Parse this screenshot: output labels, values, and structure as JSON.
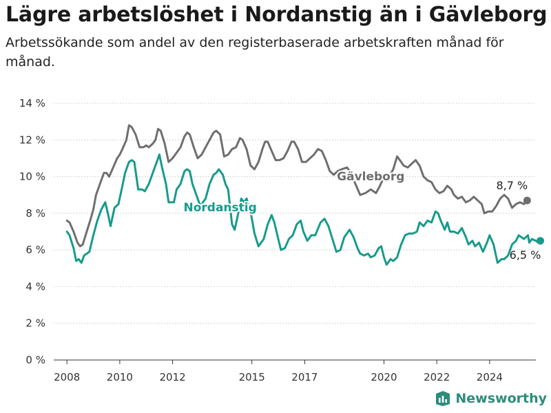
{
  "header": {
    "title": "Lägre arbetslöshet i Nordanstig än i Gävleborg",
    "subtitle": "Arbetssökande som andel av den registerbaserade arbetskraften månad för månad."
  },
  "brand": {
    "name": "Newsworthy"
  },
  "chart_data": {
    "type": "line",
    "title": "Lägre arbetslöshet i Nordanstig än i Gävleborg",
    "subtitle": "Arbetssökande som andel av den registerbaserade arbetskraften månad för månad.",
    "xlabel": "",
    "ylabel": "",
    "xlim": [
      2007.5,
      2025.75
    ],
    "ylim": [
      0,
      14
    ],
    "x_ticks": [
      2008,
      2010,
      2012,
      2015,
      2017,
      2020,
      2022,
      2024
    ],
    "x_tick_labels": [
      "2008",
      "2010",
      "2012",
      "2015",
      "2017",
      "2020",
      "2022",
      "2024"
    ],
    "y_ticks": [
      0,
      2,
      4,
      6,
      8,
      10,
      12,
      14
    ],
    "y_tick_labels": [
      "0 %",
      "2 %",
      "4 %",
      "6 %",
      "8 %",
      "10 %",
      "12 %",
      "14 %"
    ],
    "grid": "horizontal",
    "legend": "direct labels",
    "series": [
      {
        "name": "Gävleborg",
        "color": "#6e6e6e",
        "end_label": "8,7 %",
        "points": [
          [
            2008.0,
            7.6
          ],
          [
            2008.1,
            7.5
          ],
          [
            2008.25,
            7.0
          ],
          [
            2008.4,
            6.4
          ],
          [
            2008.5,
            6.2
          ],
          [
            2008.6,
            6.3
          ],
          [
            2008.75,
            7.0
          ],
          [
            2008.9,
            7.7
          ],
          [
            2009.0,
            8.2
          ],
          [
            2009.1,
            9.0
          ],
          [
            2009.25,
            9.6
          ],
          [
            2009.4,
            10.2
          ],
          [
            2009.5,
            10.2
          ],
          [
            2009.6,
            10.0
          ],
          [
            2009.75,
            10.5
          ],
          [
            2009.9,
            11.0
          ],
          [
            2010.0,
            11.2
          ],
          [
            2010.1,
            11.5
          ],
          [
            2010.25,
            12.0
          ],
          [
            2010.35,
            12.8
          ],
          [
            2010.45,
            12.7
          ],
          [
            2010.6,
            12.3
          ],
          [
            2010.75,
            11.6
          ],
          [
            2010.9,
            11.6
          ],
          [
            2011.0,
            11.7
          ],
          [
            2011.1,
            11.6
          ],
          [
            2011.25,
            11.8
          ],
          [
            2011.35,
            12.0
          ],
          [
            2011.45,
            12.6
          ],
          [
            2011.55,
            12.5
          ],
          [
            2011.7,
            11.8
          ],
          [
            2011.85,
            10.8
          ],
          [
            2012.0,
            11.0
          ],
          [
            2012.15,
            11.3
          ],
          [
            2012.3,
            11.6
          ],
          [
            2012.45,
            12.2
          ],
          [
            2012.55,
            12.4
          ],
          [
            2012.65,
            12.3
          ],
          [
            2012.8,
            11.6
          ],
          [
            2012.95,
            11.0
          ],
          [
            2013.1,
            11.2
          ],
          [
            2013.25,
            11.6
          ],
          [
            2013.4,
            12.0
          ],
          [
            2013.55,
            12.4
          ],
          [
            2013.65,
            12.5
          ],
          [
            2013.8,
            12.3
          ],
          [
            2013.95,
            11.1
          ],
          [
            2014.1,
            11.2
          ],
          [
            2014.25,
            11.5
          ],
          [
            2014.4,
            11.6
          ],
          [
            2014.55,
            12.1
          ],
          [
            2014.65,
            12.0
          ],
          [
            2014.8,
            11.5
          ],
          [
            2014.95,
            10.6
          ],
          [
            2015.1,
            10.4
          ],
          [
            2015.25,
            10.8
          ],
          [
            2015.4,
            11.5
          ],
          [
            2015.5,
            11.9
          ],
          [
            2015.6,
            11.9
          ],
          [
            2015.75,
            11.4
          ],
          [
            2015.9,
            10.9
          ],
          [
            2016.05,
            10.9
          ],
          [
            2016.2,
            11.0
          ],
          [
            2016.35,
            11.4
          ],
          [
            2016.5,
            11.9
          ],
          [
            2016.6,
            11.9
          ],
          [
            2016.75,
            11.5
          ],
          [
            2016.9,
            10.8
          ],
          [
            2017.05,
            10.8
          ],
          [
            2017.2,
            11.0
          ],
          [
            2017.35,
            11.2
          ],
          [
            2017.5,
            11.5
          ],
          [
            2017.65,
            11.4
          ],
          [
            2017.8,
            10.9
          ],
          [
            2017.95,
            10.3
          ],
          [
            2018.1,
            10.1
          ],
          [
            2018.25,
            10.3
          ],
          [
            2018.4,
            10.4
          ],
          [
            2018.6,
            10.5
          ],
          [
            2018.7,
            10.3
          ],
          [
            2018.8,
            10.0
          ],
          [
            2018.95,
            9.5
          ],
          [
            2019.1,
            9.0
          ],
          [
            2019.3,
            9.1
          ],
          [
            2019.5,
            9.3
          ],
          [
            2019.7,
            9.1
          ],
          [
            2019.85,
            9.5
          ],
          [
            2020.0,
            10.0
          ],
          [
            2020.1,
            10.1
          ],
          [
            2020.2,
            10.0
          ],
          [
            2020.35,
            10.4
          ],
          [
            2020.5,
            11.1
          ],
          [
            2020.6,
            10.9
          ],
          [
            2020.75,
            10.6
          ],
          [
            2020.9,
            10.5
          ],
          [
            2021.05,
            10.7
          ],
          [
            2021.2,
            10.9
          ],
          [
            2021.35,
            10.6
          ],
          [
            2021.5,
            10.0
          ],
          [
            2021.65,
            9.8
          ],
          [
            2021.8,
            9.7
          ],
          [
            2021.95,
            9.3
          ],
          [
            2022.1,
            9.1
          ],
          [
            2022.25,
            9.2
          ],
          [
            2022.4,
            9.5
          ],
          [
            2022.55,
            9.3
          ],
          [
            2022.65,
            9.0
          ],
          [
            2022.8,
            8.8
          ],
          [
            2022.95,
            8.9
          ],
          [
            2023.1,
            8.6
          ],
          [
            2023.25,
            8.7
          ],
          [
            2023.4,
            8.9
          ],
          [
            2023.55,
            8.7
          ],
          [
            2023.7,
            8.5
          ],
          [
            2023.8,
            8.0
          ],
          [
            2023.95,
            8.1
          ],
          [
            2024.1,
            8.1
          ],
          [
            2024.25,
            8.4
          ],
          [
            2024.4,
            8.8
          ],
          [
            2024.55,
            9.0
          ],
          [
            2024.7,
            8.8
          ],
          [
            2024.85,
            8.3
          ],
          [
            2025.0,
            8.5
          ],
          [
            2025.15,
            8.6
          ],
          [
            2025.3,
            8.5
          ],
          [
            2025.42,
            8.7
          ]
        ]
      },
      {
        "name": "Nordanstig",
        "color": "#169b8a",
        "end_label": "6,5 %",
        "points": [
          [
            2008.0,
            7.0
          ],
          [
            2008.1,
            6.8
          ],
          [
            2008.25,
            6.1
          ],
          [
            2008.35,
            5.4
          ],
          [
            2008.45,
            5.5
          ],
          [
            2008.55,
            5.3
          ],
          [
            2008.65,
            5.7
          ],
          [
            2008.85,
            5.9
          ],
          [
            2009.0,
            6.8
          ],
          [
            2009.15,
            7.6
          ],
          [
            2009.3,
            8.2
          ],
          [
            2009.45,
            8.6
          ],
          [
            2009.55,
            8.0
          ],
          [
            2009.65,
            7.3
          ],
          [
            2009.8,
            8.3
          ],
          [
            2009.95,
            8.5
          ],
          [
            2010.1,
            9.5
          ],
          [
            2010.2,
            10.2
          ],
          [
            2010.35,
            10.8
          ],
          [
            2010.45,
            10.9
          ],
          [
            2010.55,
            10.8
          ],
          [
            2010.7,
            9.3
          ],
          [
            2010.85,
            9.3
          ],
          [
            2010.95,
            9.2
          ],
          [
            2011.1,
            9.6
          ],
          [
            2011.25,
            10.2
          ],
          [
            2011.4,
            10.8
          ],
          [
            2011.5,
            11.2
          ],
          [
            2011.6,
            10.5
          ],
          [
            2011.75,
            9.6
          ],
          [
            2011.85,
            8.6
          ],
          [
            2012.05,
            8.6
          ],
          [
            2012.15,
            9.3
          ],
          [
            2012.3,
            9.6
          ],
          [
            2012.45,
            10.3
          ],
          [
            2012.55,
            10.4
          ],
          [
            2012.65,
            10.3
          ],
          [
            2012.75,
            9.6
          ],
          [
            2012.9,
            9.0
          ],
          [
            2013.05,
            8.4
          ],
          [
            2013.25,
            8.8
          ],
          [
            2013.4,
            9.6
          ],
          [
            2013.55,
            10.1
          ],
          [
            2013.65,
            10.2
          ],
          [
            2013.75,
            10.4
          ],
          [
            2013.9,
            10.1
          ],
          [
            2014.0,
            9.6
          ],
          [
            2014.1,
            9.3
          ],
          [
            2014.25,
            7.4
          ],
          [
            2014.35,
            7.1
          ],
          [
            2014.5,
            8.1
          ],
          [
            2014.6,
            8.8
          ],
          [
            2014.7,
            8.6
          ],
          [
            2014.8,
            8.8
          ],
          [
            2014.95,
            8.1
          ],
          [
            2015.1,
            6.9
          ],
          [
            2015.25,
            6.2
          ],
          [
            2015.35,
            6.4
          ],
          [
            2015.45,
            6.6
          ],
          [
            2015.6,
            7.4
          ],
          [
            2015.75,
            7.9
          ],
          [
            2015.85,
            7.5
          ],
          [
            2016.0,
            6.6
          ],
          [
            2016.1,
            6.0
          ],
          [
            2016.25,
            6.1
          ],
          [
            2016.4,
            6.6
          ],
          [
            2016.55,
            6.8
          ],
          [
            2016.7,
            7.4
          ],
          [
            2016.85,
            7.6
          ],
          [
            2016.95,
            7.0
          ],
          [
            2017.1,
            6.5
          ],
          [
            2017.25,
            6.8
          ],
          [
            2017.4,
            6.8
          ],
          [
            2017.6,
            7.5
          ],
          [
            2017.75,
            7.7
          ],
          [
            2017.9,
            7.3
          ],
          [
            2018.05,
            6.6
          ],
          [
            2018.2,
            5.9
          ],
          [
            2018.35,
            6.0
          ],
          [
            2018.5,
            6.7
          ],
          [
            2018.7,
            7.1
          ],
          [
            2018.85,
            6.7
          ],
          [
            2019.0,
            6.1
          ],
          [
            2019.1,
            5.8
          ],
          [
            2019.25,
            5.7
          ],
          [
            2019.4,
            5.8
          ],
          [
            2019.5,
            5.6
          ],
          [
            2019.65,
            5.7
          ],
          [
            2019.8,
            6.1
          ],
          [
            2019.9,
            6.2
          ],
          [
            2020.0,
            5.6
          ],
          [
            2020.1,
            5.2
          ],
          [
            2020.25,
            5.5
          ],
          [
            2020.35,
            5.4
          ],
          [
            2020.5,
            5.6
          ],
          [
            2020.65,
            6.3
          ],
          [
            2020.8,
            6.8
          ],
          [
            2020.95,
            6.9
          ],
          [
            2021.1,
            6.9
          ],
          [
            2021.25,
            7.0
          ],
          [
            2021.35,
            7.5
          ],
          [
            2021.5,
            7.3
          ],
          [
            2021.65,
            7.6
          ],
          [
            2021.8,
            7.5
          ],
          [
            2021.95,
            8.1
          ],
          [
            2022.05,
            8.0
          ],
          [
            2022.15,
            7.6
          ],
          [
            2022.3,
            7.1
          ],
          [
            2022.4,
            7.5
          ],
          [
            2022.5,
            7.0
          ],
          [
            2022.65,
            7.0
          ],
          [
            2022.8,
            6.9
          ],
          [
            2022.95,
            7.2
          ],
          [
            2023.1,
            6.7
          ],
          [
            2023.2,
            6.3
          ],
          [
            2023.35,
            6.5
          ],
          [
            2023.45,
            6.2
          ],
          [
            2023.6,
            6.4
          ],
          [
            2023.75,
            5.9
          ],
          [
            2023.9,
            6.4
          ],
          [
            2024.0,
            6.8
          ],
          [
            2024.15,
            6.3
          ],
          [
            2024.3,
            5.3
          ],
          [
            2024.45,
            5.5
          ],
          [
            2024.55,
            5.5
          ],
          [
            2024.7,
            5.7
          ],
          [
            2024.85,
            6.3
          ],
          [
            2025.0,
            6.5
          ],
          [
            2025.1,
            6.8
          ],
          [
            2025.3,
            6.6
          ],
          [
            2025.45,
            6.8
          ],
          [
            2025.5,
            6.4
          ],
          [
            2025.6,
            6.6
          ],
          [
            2025.75,
            6.5
          ],
          [
            2025.85,
            6.4
          ],
          [
            2025.92,
            6.5
          ]
        ]
      }
    ]
  }
}
